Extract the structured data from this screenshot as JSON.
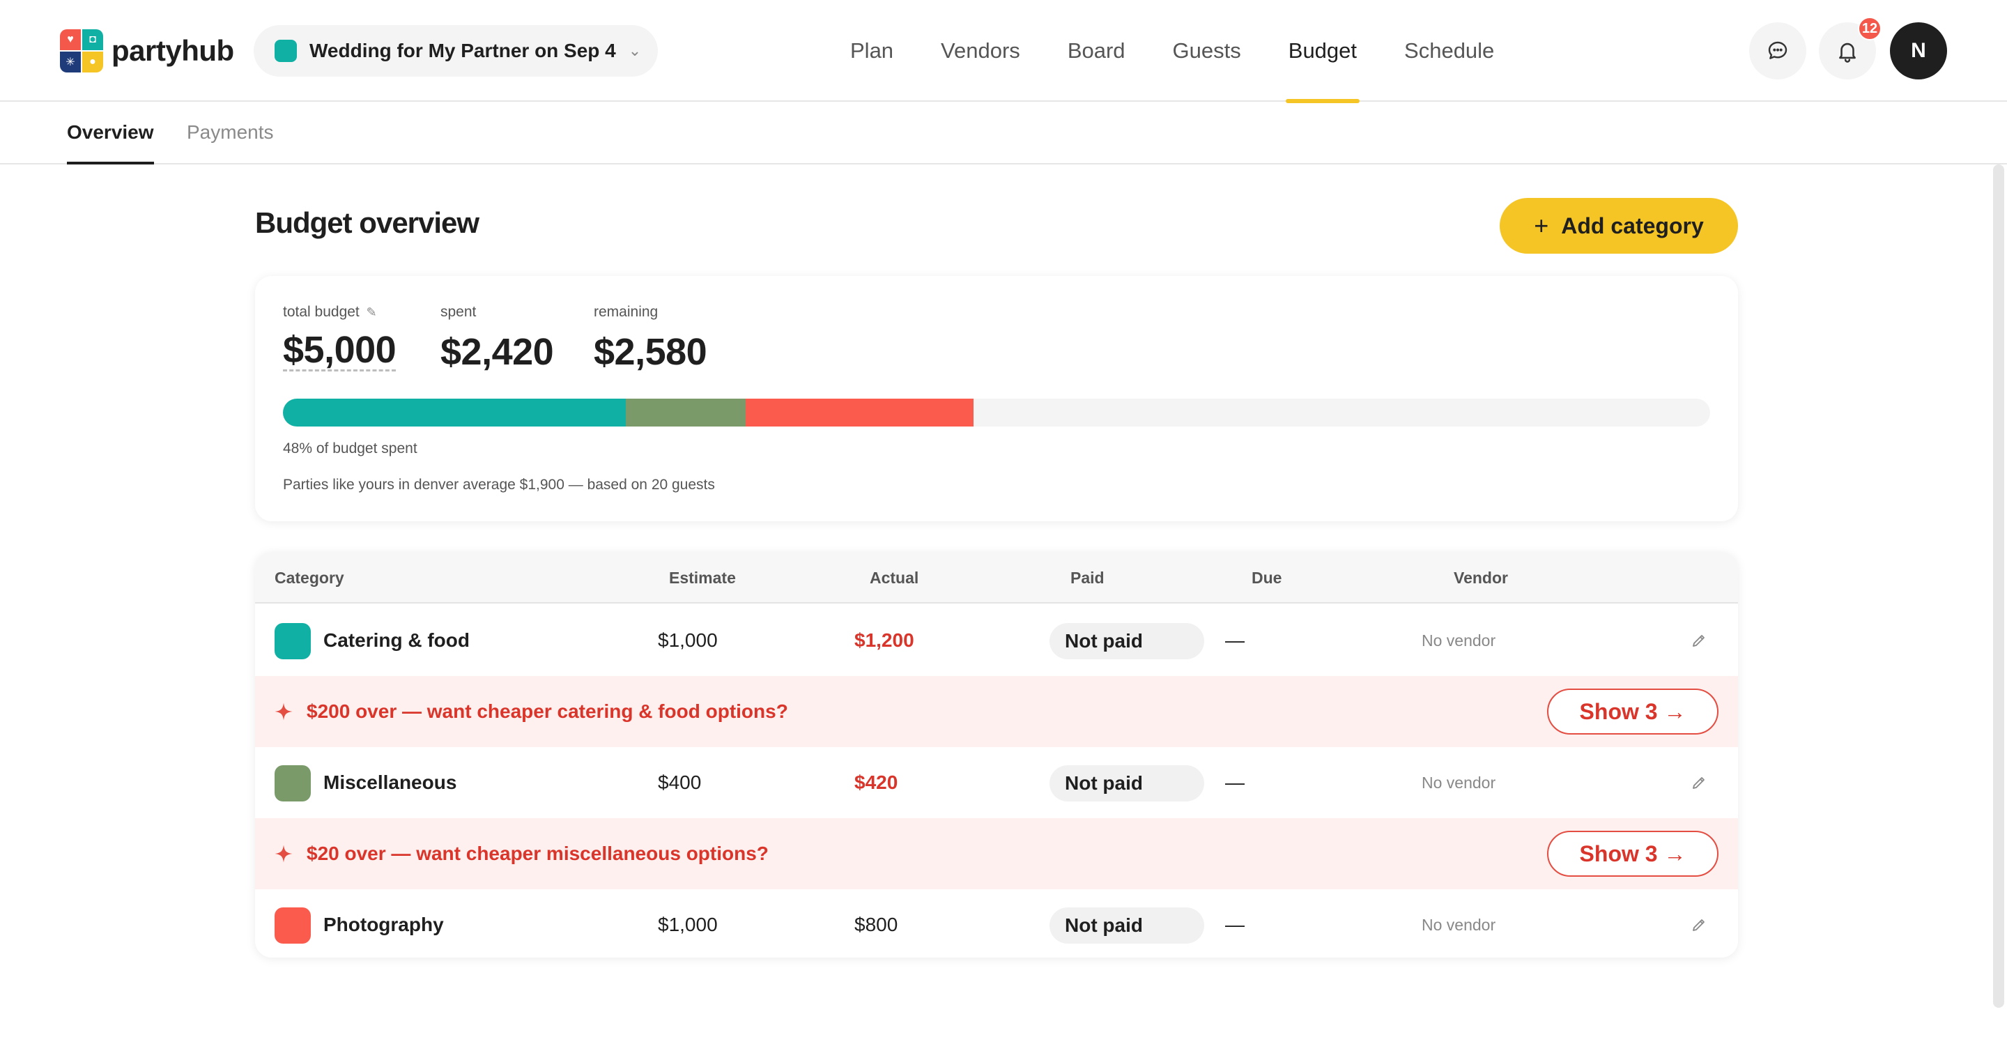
{
  "brand": {
    "name": "partyhub"
  },
  "event": {
    "name": "Wedding for My Partner on Sep 4",
    "color": "#11b0a5"
  },
  "nav": {
    "items": [
      {
        "label": "Plan",
        "active": false
      },
      {
        "label": "Vendors",
        "active": false
      },
      {
        "label": "Board",
        "active": false
      },
      {
        "label": "Guests",
        "active": false
      },
      {
        "label": "Budget",
        "active": true
      },
      {
        "label": "Schedule",
        "active": false
      }
    ]
  },
  "header": {
    "notification_count": "12",
    "avatar_initial": "N"
  },
  "subnav": {
    "overview": "Overview",
    "payments": "Payments"
  },
  "page": {
    "title": "Budget overview",
    "add_category_label": "Add category"
  },
  "summary": {
    "total_label": "total budget",
    "total_value": "$5,000",
    "spent_label": "spent",
    "spent_value": "$2,420",
    "remaining_label": "remaining",
    "remaining_value": "$2,580",
    "progress_text": "48% of budget spent",
    "avg_text": "Parties like yours in denver average $1,900 — based on 20 guests",
    "progress_segments": [
      {
        "category": "Catering & food",
        "amount": 1200,
        "color": "#11b0a5"
      },
      {
        "category": "Miscellaneous",
        "amount": 420,
        "color": "#7a9a6a"
      },
      {
        "category": "Photography",
        "amount": 800,
        "color": "#fb5b4c"
      }
    ],
    "progress_total": 5000
  },
  "table": {
    "headers": {
      "category": "Category",
      "estimate": "Estimate",
      "actual": "Actual",
      "paid": "Paid",
      "due": "Due",
      "vendor": "Vendor"
    },
    "rows": [
      {
        "name": "Catering & food",
        "color": "#11b0a5",
        "estimate": "$1,000",
        "actual": "$1,200",
        "over": true,
        "paid": "Not paid",
        "due": "—",
        "vendor": "No vendor"
      },
      {
        "name": "Miscellaneous",
        "color": "#7a9a6a",
        "estimate": "$400",
        "actual": "$420",
        "over": true,
        "paid": "Not paid",
        "due": "—",
        "vendor": "No vendor"
      },
      {
        "name": "Photography",
        "color": "#fb5b4c",
        "estimate": "$1,000",
        "actual": "$800",
        "over": false,
        "paid": "Not paid",
        "due": "—",
        "vendor": "No vendor"
      }
    ],
    "alerts": [
      {
        "text": "$200 over — want cheaper catering & food options?",
        "button": "Show 3 →"
      },
      {
        "text": "$20 over — want cheaper miscellaneous options?",
        "button": "Show 3 →"
      }
    ]
  },
  "colors": {
    "accent": "#f5c525",
    "danger": "#d9352a"
  }
}
